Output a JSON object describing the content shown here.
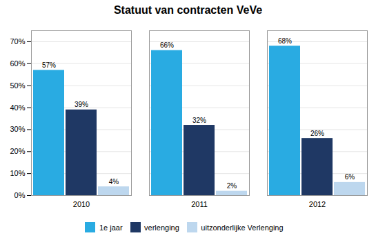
{
  "chart_data": {
    "type": "bar",
    "title": "Statuut van contracten VeVe",
    "categories": [
      "2010",
      "2011",
      "2012"
    ],
    "series": [
      {
        "name": "1e jaar",
        "color": "#29ABE2",
        "values": [
          57,
          66,
          68
        ],
        "value_labels": [
          "57%",
          "66%",
          "68%"
        ]
      },
      {
        "name": "verlenging",
        "color": "#1F3864",
        "values": [
          39,
          32,
          26
        ],
        "value_labels": [
          "39%",
          "32%",
          "26%"
        ]
      },
      {
        "name": "uitzonderlijke Verlenging",
        "color": "#BDD7EE",
        "values": [
          4,
          2,
          6
        ],
        "value_labels": [
          "4%",
          "2%",
          "6%"
        ]
      }
    ],
    "ylim": [
      0,
      75
    ],
    "yticks": [
      {
        "value": 0,
        "label": "0%"
      },
      {
        "value": 10,
        "label": "10%"
      },
      {
        "value": 20,
        "label": "20%"
      },
      {
        "value": 30,
        "label": "30%"
      },
      {
        "value": 40,
        "label": "40%"
      },
      {
        "value": 50,
        "label": "50%"
      },
      {
        "value": 60,
        "label": "60%"
      },
      {
        "value": 70,
        "label": "70%"
      }
    ],
    "grid": true,
    "legend": "bottom",
    "data_labels": true
  }
}
